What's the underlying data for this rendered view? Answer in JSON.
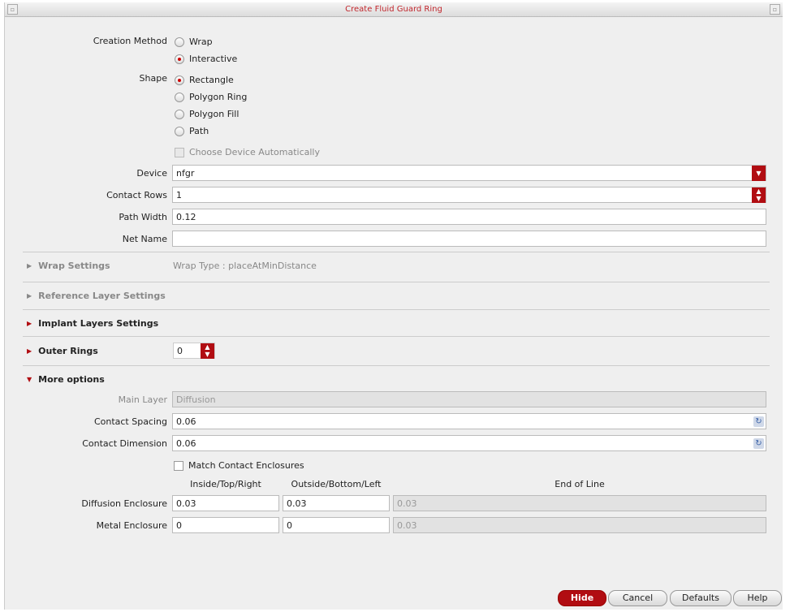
{
  "window": {
    "title": "Create Fluid Guard Ring"
  },
  "creation_method": {
    "label": "Creation Method",
    "options": [
      {
        "label": "Wrap",
        "selected": false
      },
      {
        "label": "Interactive",
        "selected": true
      }
    ]
  },
  "shape": {
    "label": "Shape",
    "options": [
      {
        "label": "Rectangle",
        "selected": true
      },
      {
        "label": "Polygon Ring",
        "selected": false
      },
      {
        "label": "Polygon Fill",
        "selected": false
      },
      {
        "label": "Path",
        "selected": false
      }
    ]
  },
  "choose_device": {
    "label": "Choose Device Automatically",
    "checked": false,
    "disabled": true
  },
  "fields": {
    "device": {
      "label": "Device",
      "value": "nfgr"
    },
    "contact_rows": {
      "label": "Contact Rows",
      "value": "1"
    },
    "path_width": {
      "label": "Path Width",
      "value": "0.12"
    },
    "net_name": {
      "label": "Net Name",
      "value": ""
    }
  },
  "sections": {
    "wrap": {
      "label": "Wrap Settings",
      "info": "Wrap Type : placeAtMinDistance"
    },
    "reference": {
      "label": "Reference Layer Settings"
    },
    "implant": {
      "label": "Implant Layers Settings"
    },
    "outer": {
      "label": "Outer Rings",
      "value": "0"
    },
    "more": {
      "label": "More options"
    }
  },
  "more": {
    "main_layer": {
      "label": "Main Layer",
      "value": "Diffusion"
    },
    "contact_spacing": {
      "label": "Contact Spacing",
      "value": "0.06"
    },
    "contact_dimension": {
      "label": "Contact Dimension",
      "value": "0.06"
    },
    "match": {
      "label": "Match Contact Enclosures",
      "checked": false
    },
    "headers": [
      "Inside/Top/Right",
      "Outside/Bottom/Left",
      "End of Line"
    ],
    "rows": [
      {
        "label": "Diffusion Enclosure",
        "values": [
          "0.03",
          "0.03",
          "0.03"
        ]
      },
      {
        "label": "Metal Enclosure",
        "values": [
          "0",
          "0",
          "0.03"
        ]
      }
    ]
  },
  "buttons": {
    "hide": "Hide",
    "cancel": "Cancel",
    "defaults": "Defaults",
    "help": "Help"
  },
  "colors": {
    "accent": "#b10d12",
    "title": "#c0262c"
  }
}
